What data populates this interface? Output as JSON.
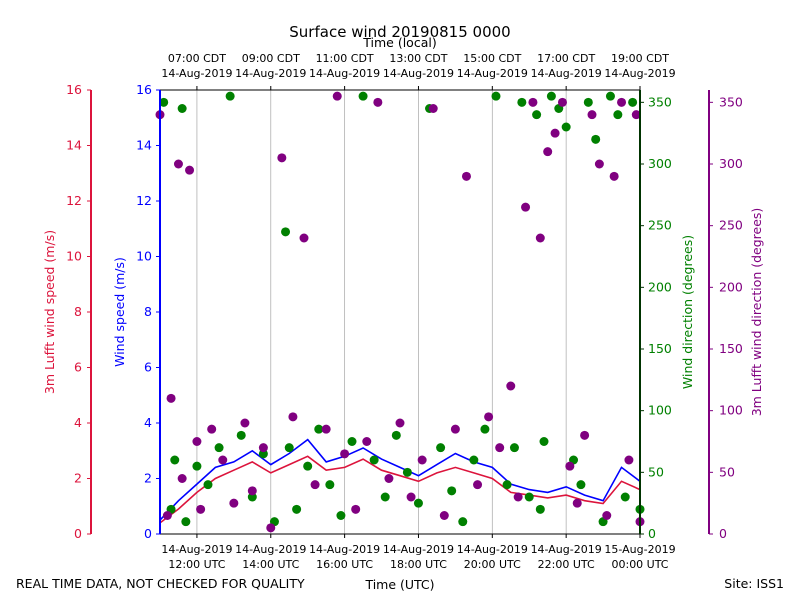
{
  "chart_data": {
    "type": "scatter",
    "title": "Surface wind 20190815 0000",
    "top_axis_label": "Time (local)",
    "xlabel": "Time (UTC)",
    "footer_left": "REAL TIME DATA, NOT CHECKED FOR QUALITY",
    "footer_right": "Site: ISS1",
    "x_range_hours_utc": [
      11,
      24
    ],
    "bottom_ticks": [
      {
        "hour": 12,
        "line1": "14-Aug-2019",
        "line2": "12:00 UTC"
      },
      {
        "hour": 14,
        "line1": "14-Aug-2019",
        "line2": "14:00 UTC"
      },
      {
        "hour": 16,
        "line1": "14-Aug-2019",
        "line2": "16:00 UTC"
      },
      {
        "hour": 18,
        "line1": "14-Aug-2019",
        "line2": "18:00 UTC"
      },
      {
        "hour": 20,
        "line1": "14-Aug-2019",
        "line2": "20:00 UTC"
      },
      {
        "hour": 22,
        "line1": "14-Aug-2019",
        "line2": "22:00 UTC"
      },
      {
        "hour": 24,
        "line1": "15-Aug-2019",
        "line2": "00:00 UTC"
      }
    ],
    "top_ticks": [
      {
        "hour": 12,
        "line1": "07:00 CDT",
        "line2": "14-Aug-2019"
      },
      {
        "hour": 14,
        "line1": "09:00 CDT",
        "line2": "14-Aug-2019"
      },
      {
        "hour": 16,
        "line1": "11:00 CDT",
        "line2": "14-Aug-2019"
      },
      {
        "hour": 18,
        "line1": "13:00 CDT",
        "line2": "14-Aug-2019"
      },
      {
        "hour": 20,
        "line1": "15:00 CDT",
        "line2": "14-Aug-2019"
      },
      {
        "hour": 22,
        "line1": "17:00 CDT",
        "line2": "14-Aug-2019"
      },
      {
        "hour": 24,
        "line1": "19:00 CDT",
        "line2": "14-Aug-2019"
      }
    ],
    "axes": {
      "wind_speed": {
        "label": "Wind speed (m/s)",
        "range": [
          0,
          16
        ],
        "ticks": [
          "0",
          "2",
          "4",
          "6",
          "8",
          "10",
          "12",
          "14",
          "16"
        ],
        "color": "#0000ff"
      },
      "lufft_speed": {
        "label": "3m Lufft wind speed (m/s)",
        "range": [
          0,
          16
        ],
        "ticks": [
          "0",
          "2",
          "4",
          "6",
          "8",
          "10",
          "12",
          "14",
          "16"
        ],
        "color": "#dc143c"
      },
      "wind_dir": {
        "label": "Wind direction (degrees)",
        "range": [
          0,
          360
        ],
        "ticks": [
          "0",
          "50",
          "100",
          "150",
          "200",
          "250",
          "300",
          "350"
        ],
        "color": "#008000"
      },
      "lufft_dir": {
        "label": "3m Lufft wind direction (degrees)",
        "range": [
          0,
          360
        ],
        "ticks": [
          "0",
          "50",
          "100",
          "150",
          "200",
          "250",
          "300",
          "350"
        ],
        "color": "#800080"
      }
    },
    "series": [
      {
        "name": "Wind speed",
        "axis": "wind_speed",
        "style": "line",
        "color": "#0000ff",
        "x": [
          11.0,
          11.5,
          12.0,
          12.5,
          13.0,
          13.5,
          14.0,
          14.5,
          15.0,
          15.5,
          16.0,
          16.5,
          17.0,
          17.5,
          18.0,
          18.5,
          19.0,
          19.5,
          20.0,
          20.5,
          21.0,
          21.5,
          22.0,
          22.5,
          23.0,
          23.5,
          24.0
        ],
        "values": [
          0.5,
          1.2,
          1.8,
          2.4,
          2.6,
          3.0,
          2.5,
          2.9,
          3.4,
          2.6,
          2.8,
          3.1,
          2.7,
          2.4,
          2.1,
          2.5,
          2.9,
          2.6,
          2.4,
          1.8,
          1.6,
          1.5,
          1.7,
          1.4,
          1.2,
          2.4,
          1.9
        ]
      },
      {
        "name": "3m Lufft wind speed",
        "axis": "lufft_speed",
        "style": "line",
        "color": "#dc143c",
        "x": [
          11.0,
          11.5,
          12.0,
          12.5,
          13.0,
          13.5,
          14.0,
          14.5,
          15.0,
          15.5,
          16.0,
          16.5,
          17.0,
          17.5,
          18.0,
          18.5,
          19.0,
          19.5,
          20.0,
          20.5,
          21.0,
          21.5,
          22.0,
          22.5,
          23.0,
          23.5,
          24.0
        ],
        "values": [
          0.4,
          0.9,
          1.5,
          2.0,
          2.3,
          2.6,
          2.2,
          2.5,
          2.8,
          2.3,
          2.4,
          2.7,
          2.3,
          2.1,
          1.9,
          2.2,
          2.4,
          2.2,
          2.0,
          1.5,
          1.4,
          1.3,
          1.4,
          1.2,
          1.1,
          1.9,
          1.6
        ]
      },
      {
        "name": "Wind direction",
        "axis": "wind_dir",
        "style": "points",
        "color": "#008000",
        "x": [
          11.1,
          11.3,
          11.4,
          11.6,
          11.7,
          12.0,
          12.3,
          12.6,
          12.9,
          13.2,
          13.5,
          13.8,
          14.1,
          14.4,
          14.5,
          14.7,
          15.0,
          15.3,
          15.6,
          15.9,
          16.2,
          16.5,
          16.8,
          17.1,
          17.4,
          17.7,
          18.0,
          18.3,
          18.6,
          18.9,
          19.2,
          19.5,
          19.8,
          20.1,
          20.4,
          20.6,
          20.8,
          21.0,
          21.2,
          21.3,
          21.4,
          21.6,
          21.8,
          22.0,
          22.2,
          22.4,
          22.6,
          22.8,
          23.0,
          23.2,
          23.4,
          23.6,
          23.8,
          24.0
        ],
        "values": [
          350,
          20,
          60,
          345,
          10,
          55,
          40,
          70,
          355,
          80,
          30,
          65,
          10,
          245,
          70,
          20,
          55,
          85,
          40,
          15,
          75,
          355,
          60,
          30,
          80,
          50,
          25,
          345,
          70,
          35,
          10,
          60,
          85,
          355,
          40,
          70,
          350,
          30,
          340,
          20,
          75,
          355,
          345,
          330,
          60,
          40,
          350,
          320,
          10,
          355,
          340,
          30,
          350,
          20
        ]
      },
      {
        "name": "3m Lufft wind direction",
        "axis": "lufft_dir",
        "style": "points",
        "color": "#800080",
        "x": [
          11.0,
          11.2,
          11.3,
          11.5,
          11.6,
          11.8,
          12.0,
          12.1,
          12.4,
          12.7,
          13.0,
          13.3,
          13.5,
          13.8,
          14.0,
          14.3,
          14.6,
          14.9,
          15.2,
          15.5,
          15.8,
          16.0,
          16.3,
          16.6,
          16.9,
          17.2,
          17.5,
          17.8,
          18.1,
          18.4,
          18.7,
          19.0,
          19.3,
          19.6,
          19.9,
          20.2,
          20.5,
          20.7,
          20.9,
          21.1,
          21.3,
          21.5,
          21.7,
          21.9,
          22.1,
          22.3,
          22.5,
          22.7,
          22.9,
          23.1,
          23.3,
          23.5,
          23.7,
          23.9,
          24.0
        ],
        "values": [
          340,
          15,
          110,
          300,
          45,
          295,
          75,
          20,
          85,
          60,
          25,
          90,
          35,
          70,
          5,
          305,
          95,
          240,
          40,
          85,
          355,
          65,
          20,
          75,
          350,
          45,
          90,
          30,
          60,
          345,
          15,
          85,
          290,
          40,
          95,
          70,
          120,
          30,
          265,
          350,
          240,
          310,
          325,
          350,
          55,
          25,
          80,
          340,
          300,
          15,
          290,
          350,
          60,
          340,
          10
        ]
      }
    ]
  }
}
